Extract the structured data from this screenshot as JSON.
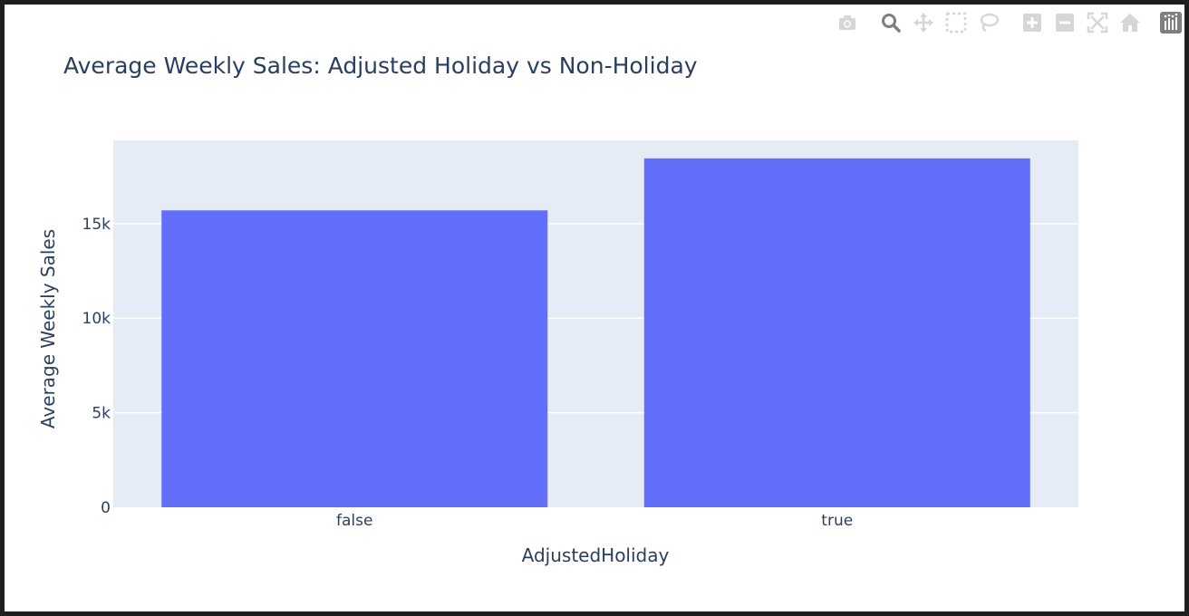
{
  "chart_data": {
    "type": "bar",
    "title": "Average Weekly Sales: Adjusted Holiday vs Non-Holiday",
    "xlabel": "AdjustedHoliday",
    "ylabel": "Average Weekly Sales",
    "categories": [
      "false",
      "true"
    ],
    "values": [
      15700,
      18450
    ],
    "ylim": [
      0,
      19400
    ],
    "yticks": [
      0,
      5000,
      10000,
      15000
    ],
    "ytick_labels": [
      "0",
      "5k",
      "10k",
      "15k"
    ],
    "bar_color": "#636efa",
    "plot_bg": "#e5ecf6",
    "grid": true
  },
  "modebar": {
    "buttons": [
      {
        "name": "camera-icon",
        "title": "Download plot as a png"
      },
      {
        "name": "zoom-icon",
        "title": "Zoom"
      },
      {
        "name": "pan-icon",
        "title": "Pan"
      },
      {
        "name": "box-select-icon",
        "title": "Box Select"
      },
      {
        "name": "lasso-select-icon",
        "title": "Lasso Select"
      },
      {
        "name": "zoom-in-icon",
        "title": "Zoom in"
      },
      {
        "name": "zoom-out-icon",
        "title": "Zoom out"
      },
      {
        "name": "autoscale-icon",
        "title": "Autoscale"
      },
      {
        "name": "reset-axes-icon",
        "title": "Reset axes"
      },
      {
        "name": "plotly-logo-icon",
        "title": "Produced with Plotly"
      }
    ]
  }
}
